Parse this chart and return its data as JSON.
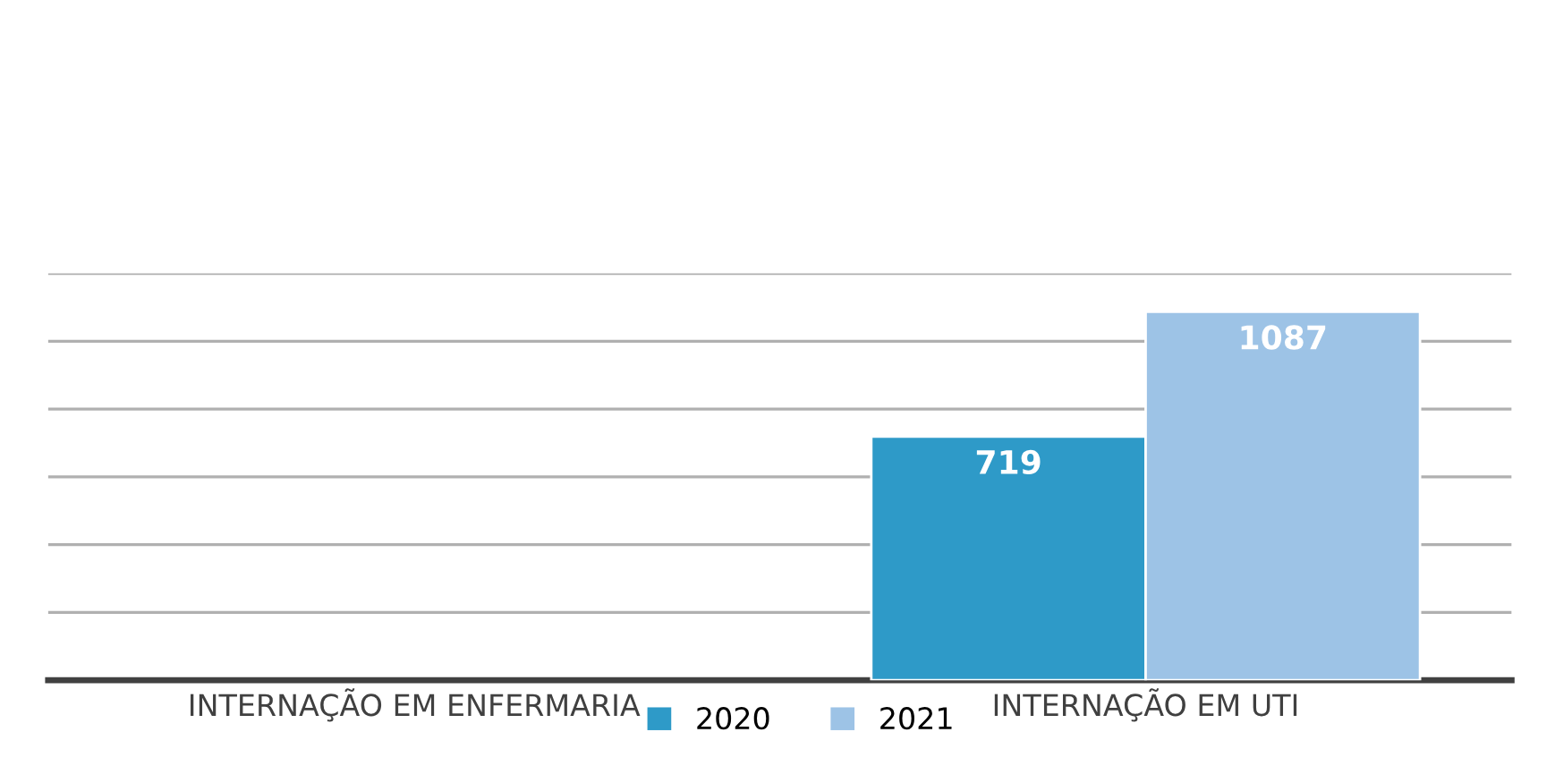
{
  "chart_data": {
    "type": "bar",
    "categories": [
      "INTERNAÇÃO EM ENFERMARIA",
      "INTERNAÇÃO EM UTI"
    ],
    "series": [
      {
        "name": "2020",
        "color": "#2e9ac8",
        "values": [
          null,
          719
        ]
      },
      {
        "name": "2021",
        "color": "#9dc3e6",
        "values": [
          null,
          1087
        ]
      }
    ],
    "ylim": [
      0,
      1200
    ],
    "yticks": [
      {
        "value": 200,
        "label": null
      },
      {
        "value": 400,
        "label": null
      },
      {
        "value": 600,
        "label": null
      },
      {
        "value": 800,
        "label": null
      },
      {
        "value": 1000,
        "label": null
      },
      {
        "value": 1200,
        "label": null
      }
    ],
    "tick_labels": "x",
    "grid": "y",
    "legend": "bottom",
    "data_labels": true
  }
}
